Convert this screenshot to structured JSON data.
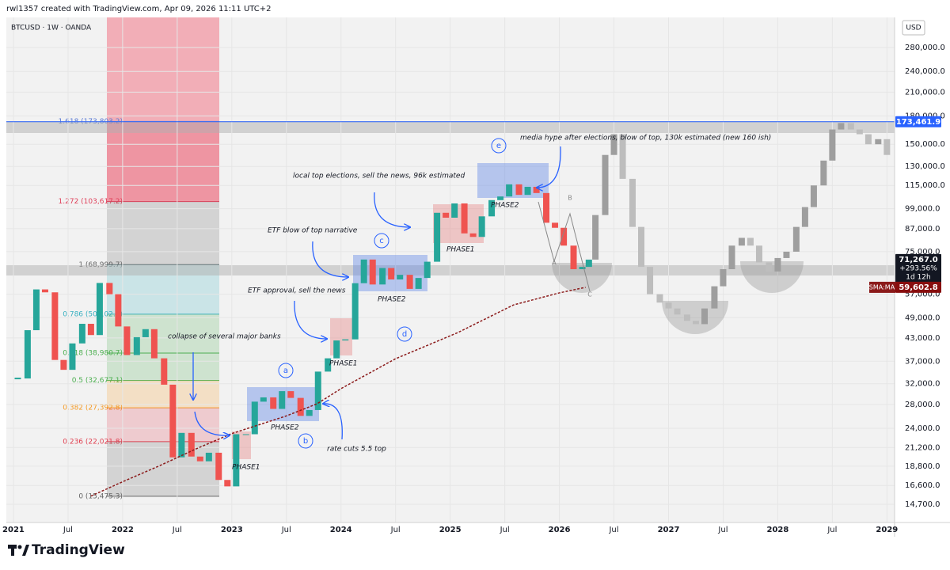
{
  "header": {
    "author_line": "rwl1357 created with TradingView.com, Apr 09, 2026 11:11 UTC+2",
    "symbol": "BTCUSD · 1W · OANDA",
    "currency": "USD",
    "brand": "TradingView"
  },
  "chart_data": {
    "type": "candlestick",
    "log_scale": true,
    "grid": true,
    "color_up": "#26a69a",
    "color_down": "#ef5350",
    "x": [
      2021.04,
      2021.13,
      2021.21,
      2021.29,
      2021.38,
      2021.46,
      2021.54,
      2021.63,
      2021.71,
      2021.79,
      2021.88,
      2021.96,
      2022.04,
      2022.13,
      2022.21,
      2022.29,
      2022.38,
      2022.46,
      2022.54,
      2022.63,
      2022.71,
      2022.79,
      2022.88,
      2022.96,
      2023.04,
      2023.13,
      2023.21,
      2023.29,
      2023.38,
      2023.46,
      2023.54,
      2023.63,
      2023.71,
      2023.79,
      2023.88,
      2023.96,
      2024.04,
      2024.13,
      2024.21,
      2024.29,
      2024.38,
      2024.46,
      2024.54,
      2024.63,
      2024.71,
      2024.79,
      2024.88,
      2024.96,
      2025.04,
      2025.13,
      2025.21,
      2025.29,
      2025.38,
      2025.46,
      2025.54,
      2025.63,
      2025.71,
      2025.79,
      2025.88,
      2025.96,
      2026.04,
      2026.13,
      2026.21,
      2026.27
    ],
    "values": [
      33100,
      45200,
      58800,
      57700,
      37300,
      35000,
      41500,
      47100,
      43800,
      61300,
      57000,
      46300,
      38500,
      43200,
      45500,
      37700,
      31800,
      19900,
      23300,
      20000,
      19400,
      20500,
      17200,
      16500,
      23100,
      23100,
      28500,
      29300,
      27200,
      30500,
      29200,
      26000,
      27000,
      34600,
      37700,
      42300,
      42600,
      61200,
      71300,
      60700,
      67500,
      62700,
      64600,
      59000,
      63300,
      70300,
      96400,
      93400,
      102400,
      84400,
      82500,
      94200,
      104600,
      107100,
      115800,
      108200,
      114000,
      109500,
      90400,
      87500,
      78000,
      67000,
      68000,
      71267
    ],
    "projection": {
      "color": "#9e9e9e",
      "x": [
        2026.33,
        2026.42,
        2026.5,
        2026.58,
        2026.67,
        2026.75,
        2026.83,
        2026.92,
        2027.0,
        2027.08,
        2027.17,
        2027.25,
        2027.33,
        2027.42,
        2027.5,
        2027.58,
        2027.67,
        2027.75,
        2027.83,
        2027.92,
        2028.0,
        2028.08,
        2028.17,
        2028.25,
        2028.33,
        2028.42,
        2028.5,
        2028.58,
        2028.67,
        2028.75,
        2028.83,
        2028.92,
        2029.0
      ],
      "values": [
        95000,
        140000,
        160000,
        120000,
        88000,
        68000,
        57000,
        54000,
        52000,
        50000,
        48000,
        47000,
        52000,
        60000,
        67000,
        78000,
        82000,
        78000,
        70000,
        66000,
        72000,
        75000,
        88000,
        100000,
        115000,
        135000,
        165000,
        172000,
        165000,
        160000,
        150000,
        155000,
        140000
      ]
    },
    "sma": {
      "name": "SMA:MA",
      "color": "#8b1a1a",
      "x": [
        2021.71,
        2022.0,
        2022.33,
        2022.67,
        2023.0,
        2023.5,
        2023.78,
        2024.0,
        2024.5,
        2025.07,
        2025.58,
        2026.0,
        2026.24
      ],
      "values": [
        15500,
        17000,
        18800,
        21000,
        23200,
        26000,
        28100,
        31000,
        37600,
        44500,
        53200,
        57500,
        59600
      ]
    },
    "xlim": [
      2020.935,
      2029.07
    ],
    "ylim": [
      13070,
      340000
    ],
    "xticks": [
      {
        "value": 2021,
        "label": "2021"
      },
      {
        "value": 2021.5,
        "label": "Jul"
      },
      {
        "value": 2022,
        "label": "2022"
      },
      {
        "value": 2022.5,
        "label": "Jul"
      },
      {
        "value": 2023,
        "label": "2023"
      },
      {
        "value": 2023.5,
        "label": "Jul"
      },
      {
        "value": 2024,
        "label": "2024"
      },
      {
        "value": 2024.5,
        "label": "Jul"
      },
      {
        "value": 2025,
        "label": "2025"
      },
      {
        "value": 2025.5,
        "label": "Jul"
      },
      {
        "value": 2026,
        "label": "2026"
      },
      {
        "value": 2026.5,
        "label": "Jul"
      },
      {
        "value": 2027,
        "label": "2027"
      },
      {
        "value": 2027.5,
        "label": "Jul"
      },
      {
        "value": 2028,
        "label": "2028"
      },
      {
        "value": 2028.5,
        "label": "Jul"
      },
      {
        "value": 2029,
        "label": "2029"
      }
    ],
    "yticks": [
      {
        "value": 14700,
        "label": "14,700.0"
      },
      {
        "value": 16600,
        "label": "16,600.0"
      },
      {
        "value": 18800,
        "label": "18,800.0"
      },
      {
        "value": 21200,
        "label": "21,200.0"
      },
      {
        "value": 24000,
        "label": "24,000.0"
      },
      {
        "value": 28000,
        "label": "28,000.0"
      },
      {
        "value": 32000,
        "label": "32,000.0"
      },
      {
        "value": 37000,
        "label": "37,000.0"
      },
      {
        "value": 43000,
        "label": "43,000.0"
      },
      {
        "value": 49000,
        "label": "49,000.0"
      },
      {
        "value": 57000,
        "label": "57,000.0"
      },
      {
        "value": 75000,
        "label": "75,000.0"
      },
      {
        "value": 87000,
        "label": "87,000.0"
      },
      {
        "value": 99000,
        "label": "99,000.0"
      },
      {
        "value": 115000,
        "label": "115,000.0"
      },
      {
        "value": 130000,
        "label": "130,000.0"
      },
      {
        "value": 150000,
        "label": "150,000.0"
      },
      {
        "value": 180000,
        "label": "180,000.0"
      },
      {
        "value": 210000,
        "label": "210,000.0"
      },
      {
        "value": 240000,
        "label": "240,000.0"
      },
      {
        "value": 280000,
        "label": "280,000.0"
      }
    ],
    "fib_levels": [
      {
        "value": 173803.2,
        "label": "1.618 (173,803.2)",
        "color": "#5b7bd5"
      },
      {
        "value": 103617.2,
        "label": "1.272 (103,617.2)",
        "color": "#e0405a"
      },
      {
        "value": 68999.7,
        "label": "1 (68,999.7)",
        "color": "#666666"
      },
      {
        "value": 50102.1,
        "label": "0.786 (50,102.1)",
        "color": "#3ab0c0"
      },
      {
        "value": 38980.7,
        "label": "0.618 (38,980.7)",
        "color": "#4caf50"
      },
      {
        "value": 32677.1,
        "label": "0.5 (32,677.1)",
        "color": "#4caf50"
      },
      {
        "value": 27392.8,
        "label": "0.382 (27,392.8)",
        "color": "#f59a23"
      },
      {
        "value": 22021.8,
        "label": "0.236 (22,021.8)",
        "color": "#e04050"
      },
      {
        "value": 15475.3,
        "label": "0 (15,475.3)",
        "color": "#666666"
      }
    ],
    "price_labels": [
      {
        "value": 173461.9,
        "label": "173,461.9",
        "color": "#2962ff"
      },
      {
        "value": 71267,
        "label": "71,267.0",
        "change": "+293.56%",
        "countdown": "1d 12h",
        "color": "#131722"
      },
      {
        "value": 59602.8,
        "label": "59,602.8",
        "color": "#880e0e"
      }
    ],
    "annotations": {
      "banks": "collapse of several major banks",
      "etf_approval": "ETF approval, sell the news",
      "etf_narrative": "ETF blow of top narrative",
      "local_top": "local top elections, sell the news, 96k estimated",
      "media_hype": "media hype after elections, blow of top, 130k estimated (new 160 ish)",
      "rate_cuts": "rate cuts 5.5 top",
      "phases": [
        "PHASE1",
        "PHASE2",
        "PHASE1",
        "PHASE2",
        "PHASE1",
        "PHASE2"
      ],
      "circled": [
        "a",
        "b",
        "c",
        "d",
        "e"
      ],
      "waves": [
        "A",
        "B",
        "C"
      ]
    }
  }
}
